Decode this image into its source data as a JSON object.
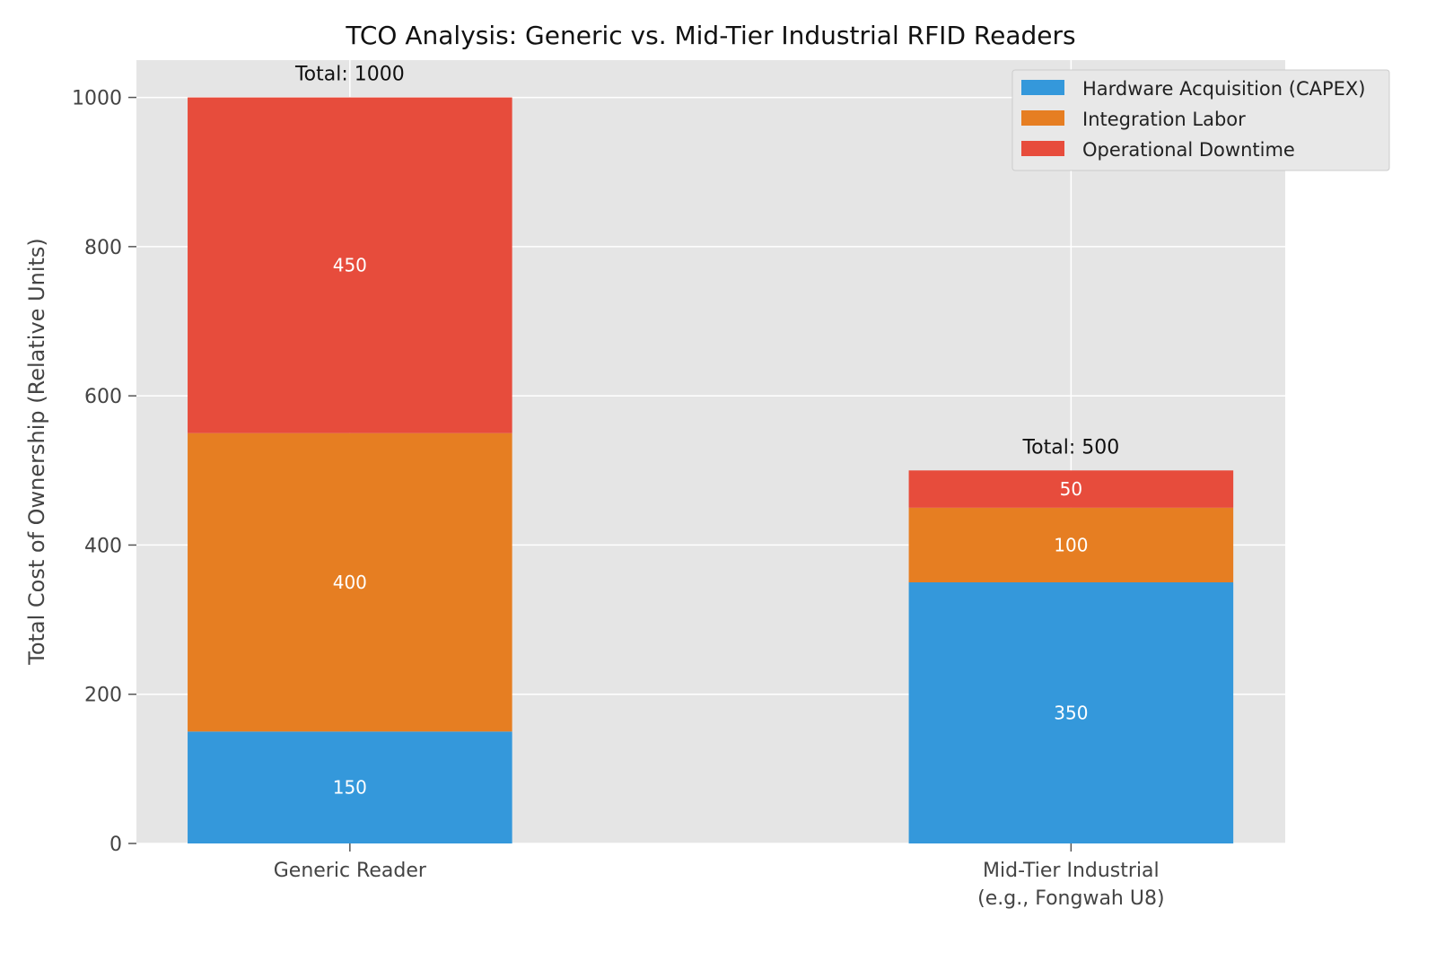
{
  "chart_data": {
    "type": "bar",
    "stacked": true,
    "title": "TCO Analysis: Generic vs. Mid-Tier Industrial RFID Readers",
    "xlabel": "",
    "ylabel": "Total Cost of Ownership (Relative Units)",
    "categories": [
      "Generic Reader",
      "Mid-Tier Industrial\n(e.g., Fongwah U8)"
    ],
    "series": [
      {
        "name": "Hardware Acquisition (CAPEX)",
        "values": [
          150,
          350
        ],
        "color": "#3498db"
      },
      {
        "name": "Integration Labor",
        "values": [
          400,
          100
        ],
        "color": "#e67e22"
      },
      {
        "name": "Operational Downtime",
        "values": [
          450,
          50
        ],
        "color": "#e74c3c"
      }
    ],
    "totals": [
      "Total: 1000",
      "Total: 500"
    ],
    "ylim": [
      0,
      1050
    ],
    "yticks": [
      0,
      200,
      400,
      600,
      800,
      1000
    ],
    "grid": true,
    "legend": "top-right",
    "background": "#e5e5e5"
  }
}
